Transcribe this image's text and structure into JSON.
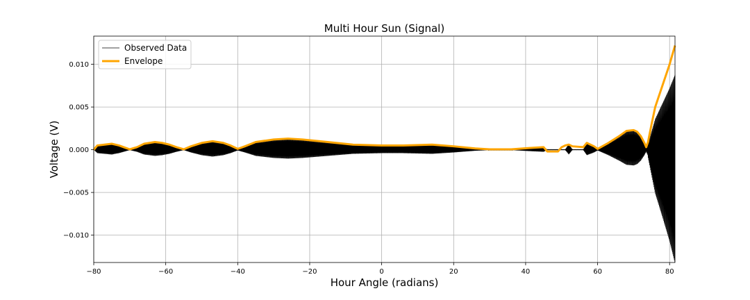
{
  "chart_data": {
    "type": "line",
    "title": "Multi Hour Sun (Signal)",
    "xlabel": "Hour Angle (radians)",
    "ylabel": "Voltage (V)",
    "xlim": [
      -80,
      81.5
    ],
    "ylim": [
      -0.0132,
      0.0133
    ],
    "x_ticks": [
      -80,
      -60,
      -40,
      -20,
      0,
      20,
      40,
      60,
      80
    ],
    "x_tick_labels": [
      "−80",
      "−60",
      "−40",
      "−20",
      "0",
      "20",
      "40",
      "60",
      "80"
    ],
    "y_ticks": [
      -0.01,
      -0.005,
      0.0,
      0.005,
      0.01
    ],
    "y_tick_labels": [
      "−0.010",
      "−0.005",
      "0.000",
      "0.005",
      "0.010"
    ],
    "grid": true,
    "legend_position": "top-left",
    "series": [
      {
        "name": "Observed Data",
        "color": "#000000",
        "style": "oscillating",
        "amplitude_envelope": {
          "x": [
            -80,
            -79,
            -77,
            -75,
            -73,
            -71,
            -70,
            -68,
            -66,
            -63,
            -61,
            -59,
            -57,
            -55,
            -53,
            -50,
            -47,
            -44,
            -42,
            -40,
            -38,
            -35,
            -30,
            -26,
            -22,
            -15,
            -8,
            0,
            6,
            14,
            20,
            26,
            30,
            36,
            41,
            45,
            46,
            49,
            51,
            52,
            53,
            56,
            57,
            58,
            59,
            60,
            63,
            66,
            68,
            70,
            71,
            72,
            73,
            73.5,
            74,
            75,
            76,
            78,
            80,
            81.5
          ],
          "y": [
            0,
            0.0005,
            0.0006,
            0.0007,
            0.0005,
            0.0002,
            5e-05,
            0.0003,
            0.0007,
            0.0009,
            0.0008,
            0.0006,
            0.0003,
            5e-05,
            0.0004,
            0.0008,
            0.001,
            0.0008,
            0.0005,
            0.0001,
            0.0004,
            0.0009,
            0.0012,
            0.0013,
            0.0012,
            0.0009,
            0.0006,
            0.0005,
            0.0005,
            0.0006,
            0.0004,
            0.00015,
            5e-05,
            5e-05,
            0.0002,
            0.0003,
            3e-05,
            3e-05,
            3e-05,
            0.0007,
            3e-05,
            3e-05,
            0.0008,
            0.0006,
            0.0004,
            0.0001,
            0.0008,
            0.0016,
            0.0022,
            0.0023,
            0.0021,
            0.0016,
            0.0008,
            0.0003,
            0.0009,
            0.003,
            0.005,
            0.0075,
            0.01,
            0.0122
          ]
        }
      },
      {
        "name": "Envelope",
        "color": "#ffa500",
        "x": [
          -80,
          -79,
          -77,
          -75,
          -73,
          -71,
          -70,
          -68,
          -66,
          -63,
          -61,
          -59,
          -57,
          -55,
          -53,
          -50,
          -47,
          -44,
          -42,
          -40,
          -38,
          -35,
          -30,
          -26,
          -22,
          -15,
          -8,
          0,
          6,
          14,
          20,
          26,
          30,
          36,
          41,
          45,
          46,
          49,
          50,
          51,
          52,
          53,
          56,
          57,
          58,
          59,
          60,
          63,
          66,
          68,
          70,
          71,
          72,
          73,
          73.5,
          74,
          75,
          76,
          78,
          80,
          81.5
        ],
        "y": [
          0,
          0.0005,
          0.0006,
          0.0007,
          0.0005,
          0.0002,
          5e-05,
          0.0003,
          0.0007,
          0.0009,
          0.0008,
          0.0006,
          0.0003,
          5e-05,
          0.0004,
          0.0008,
          0.001,
          0.0008,
          0.0005,
          0.0001,
          0.0004,
          0.0009,
          0.0012,
          0.0013,
          0.0012,
          0.0009,
          0.0006,
          0.0005,
          0.0005,
          0.0006,
          0.0004,
          0.00015,
          5e-05,
          5e-05,
          0.0002,
          0.0003,
          -0.0002,
          -0.0002,
          0.0003,
          0.0005,
          0.0006,
          0.0004,
          0.0003,
          0.0008,
          0.0006,
          0.0004,
          0.0001,
          0.0008,
          0.0016,
          0.0022,
          0.0023,
          0.0021,
          0.0016,
          0.0008,
          0.0003,
          0.0009,
          0.003,
          0.005,
          0.0075,
          0.01,
          0.0122
        ]
      }
    ]
  }
}
